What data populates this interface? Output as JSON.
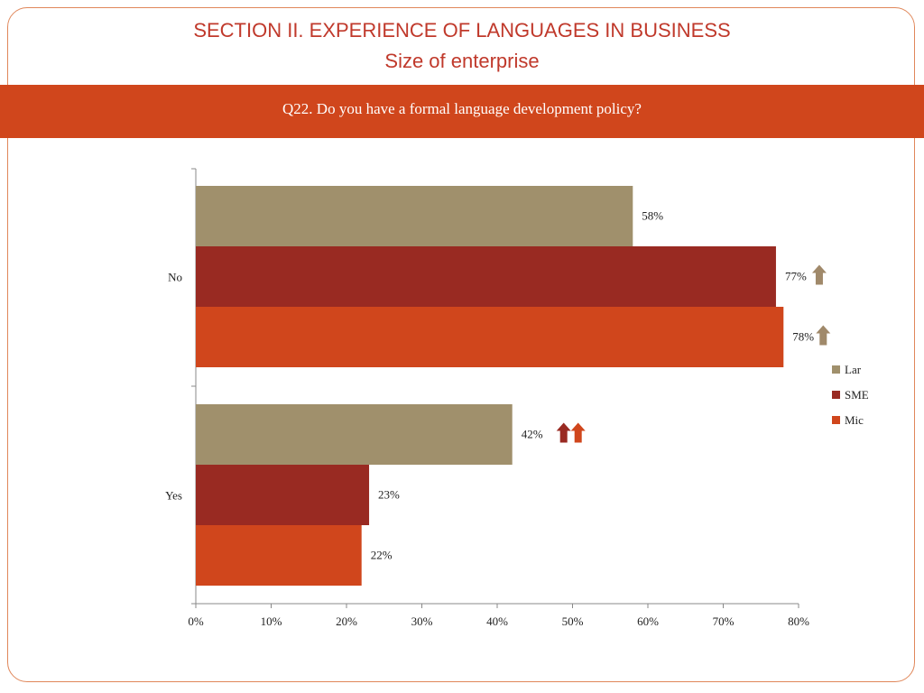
{
  "header": {
    "title": "SECTION II. EXPERIENCE OF LANGUAGES IN BUSINESS",
    "subtitle": "Size of enterprise"
  },
  "question": "Q22. Do you have a formal language development policy?",
  "colors": {
    "accent_band": "#d0461c",
    "title_text": "#c0392b",
    "frame_border": "#e0875a",
    "arrow_tan": "#a0896a"
  },
  "chart_data": {
    "type": "bar",
    "orientation": "horizontal",
    "categories": [
      "No",
      "Yes"
    ],
    "series": [
      {
        "name": "Lar",
        "color": "#a0906c",
        "values": [
          58,
          42
        ]
      },
      {
        "name": "SME",
        "color": "#992a22",
        "values": [
          77,
          23
        ]
      },
      {
        "name": "Mic",
        "color": "#d0461c",
        "values": [
          78,
          22
        ]
      }
    ],
    "value_labels": [
      [
        "58%",
        "42%"
      ],
      [
        "77%",
        "23%"
      ],
      [
        "78%",
        "22%"
      ]
    ],
    "xlim": [
      0,
      80
    ],
    "xticks": [
      0,
      10,
      20,
      30,
      40,
      50,
      60,
      70,
      80
    ],
    "xtick_labels": [
      "0%",
      "10%",
      "20%",
      "30%",
      "40%",
      "50%",
      "60%",
      "70%",
      "80%"
    ],
    "legend": "right",
    "grid": false,
    "annotations": [
      {
        "type": "up-arrow",
        "series": "SME",
        "category": "No",
        "color": "#a0896a"
      },
      {
        "type": "up-arrow",
        "series": "Mic",
        "category": "No",
        "color": "#a0896a"
      },
      {
        "type": "up-arrow",
        "series": "Lar",
        "category": "Yes",
        "color": "#992a22"
      },
      {
        "type": "up-arrow",
        "series": "Lar",
        "category": "Yes",
        "color": "#d0461c"
      }
    ]
  }
}
